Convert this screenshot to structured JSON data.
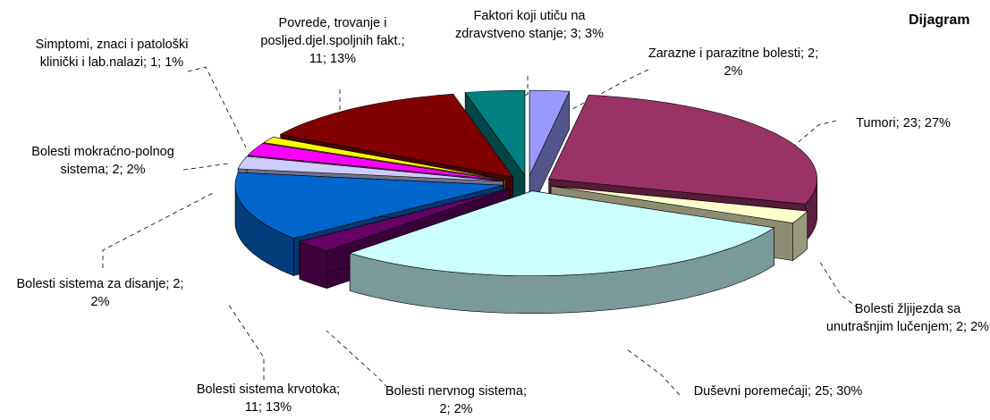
{
  "chart_data": {
    "type": "pie3d",
    "title": "Dijagram",
    "categories": [
      "Zarazne i parazitne bolesti; 2; 2%",
      "Tumori; 23; 27%",
      "Bolesti žljijezda sa unutrašnjim lučenjem; 2; 2%",
      "Duševni poremećaji; 25; 30%",
      "Bolesti nervnog sistema; 2; 2%",
      "Bolesti sistema krvotoka; 11; 13%",
      "Bolesti  sistema za disanje; 2; 2%",
      "Bolesti mokraćno-polnog sistema; 2; 2%",
      "Simptomi, znaci i patološki klinički i lab.nalazi; 1; 1%",
      "Povrede, trovanje i posljed.djel.spoljnih fakt.; 11; 13%",
      "Faktori koji utiču na zdravstveno stanje; 3; 3%"
    ],
    "values": [
      2,
      23,
      2,
      25,
      2,
      11,
      2,
      2,
      1,
      11,
      3
    ],
    "colors": [
      "#9999ff",
      "#993366",
      "#ffffcc",
      "#ccffff",
      "#660066",
      "#0066cc",
      "#ccccff",
      "#ff00ff",
      "#ffff00",
      "#800000",
      "#008080"
    ]
  }
}
